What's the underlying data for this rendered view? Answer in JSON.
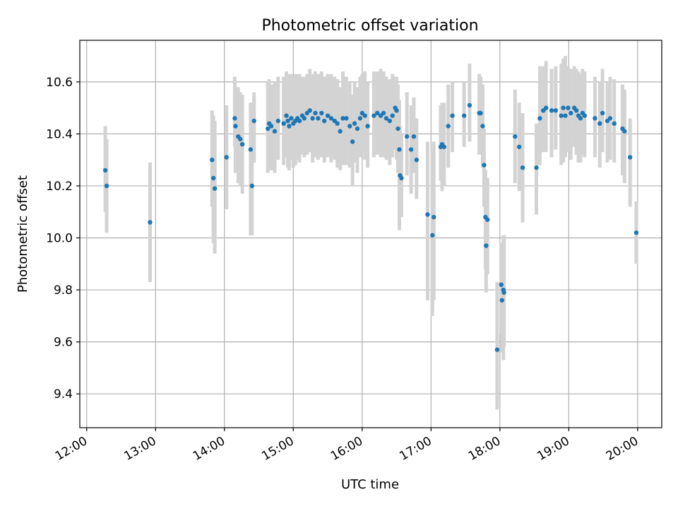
{
  "chart_data": {
    "type": "scatter",
    "title": "Photometric offset variation",
    "xlabel": "UTC time",
    "ylabel": "Photometric offset",
    "x_unit": "hour",
    "xlim": [
      11.9,
      20.35
    ],
    "ylim": [
      9.27,
      10.76
    ],
    "grid": true,
    "xticks": [
      12,
      13,
      14,
      15,
      16,
      17,
      18,
      19,
      20
    ],
    "xtick_labels": [
      "12:00",
      "13:00",
      "14:00",
      "15:00",
      "16:00",
      "17:00",
      "18:00",
      "19:00",
      "20:00"
    ],
    "yticks": [
      9.4,
      9.6,
      9.8,
      10.0,
      10.2,
      10.4,
      10.6
    ],
    "ytick_labels": [
      "9.4",
      "9.6",
      "9.8",
      "10.0",
      "10.2",
      "10.4",
      "10.6"
    ],
    "colors": {
      "point": "#1f77b4",
      "errorbar": "#d3d3d3",
      "grid": "#b0b0b0"
    },
    "series": [
      {
        "points": [
          [
            12.27,
            10.26,
            10.1,
            10.43
          ],
          [
            12.29,
            10.2,
            10.02,
            10.38
          ],
          [
            12.92,
            10.06,
            9.83,
            10.29
          ],
          [
            13.82,
            10.3,
            10.12,
            10.49
          ],
          [
            13.84,
            10.23,
            9.98,
            10.47
          ],
          [
            13.86,
            10.19,
            9.94,
            10.45
          ],
          [
            14.03,
            10.31,
            10.11,
            10.51
          ],
          [
            14.15,
            10.46,
            10.35,
            10.62
          ],
          [
            14.16,
            10.43,
            10.25,
            10.58
          ],
          [
            14.2,
            10.39,
            10.21,
            10.58
          ],
          [
            14.23,
            10.38,
            10.2,
            10.56
          ],
          [
            14.26,
            10.36,
            10.17,
            10.55
          ],
          [
            14.38,
            10.34,
            10.01,
            10.52
          ],
          [
            14.4,
            10.2,
            10.01,
            10.43
          ],
          [
            14.43,
            10.45,
            10.29,
            10.56
          ],
          [
            14.63,
            10.42,
            10.25,
            10.6
          ],
          [
            14.65,
            10.44,
            10.26,
            10.61
          ],
          [
            14.68,
            10.43,
            10.26,
            10.59
          ],
          [
            14.73,
            10.41,
            10.25,
            10.6
          ],
          [
            14.78,
            10.45,
            10.3,
            10.62
          ],
          [
            14.86,
            10.44,
            10.28,
            10.62
          ],
          [
            14.9,
            10.47,
            10.31,
            10.64
          ],
          [
            14.92,
            10.45,
            10.27,
            10.63
          ],
          [
            14.94,
            10.43,
            10.26,
            10.63
          ],
          [
            14.97,
            10.46,
            10.3,
            10.63
          ],
          [
            15.0,
            10.44,
            10.27,
            10.62
          ],
          [
            15.03,
            10.45,
            10.28,
            10.63
          ],
          [
            15.06,
            10.46,
            10.3,
            10.63
          ],
          [
            15.09,
            10.45,
            10.29,
            10.63
          ],
          [
            15.13,
            10.47,
            10.32,
            10.62
          ],
          [
            15.16,
            10.46,
            10.31,
            10.62
          ],
          [
            15.2,
            10.48,
            10.32,
            10.63
          ],
          [
            15.24,
            10.49,
            10.33,
            10.65
          ],
          [
            15.28,
            10.46,
            10.29,
            10.63
          ],
          [
            15.32,
            10.48,
            10.31,
            10.64
          ],
          [
            15.36,
            10.46,
            10.3,
            10.63
          ],
          [
            15.41,
            10.48,
            10.31,
            10.64
          ],
          [
            15.45,
            10.45,
            10.29,
            10.62
          ],
          [
            15.5,
            10.47,
            10.31,
            10.63
          ],
          [
            15.55,
            10.46,
            10.29,
            10.63
          ],
          [
            15.6,
            10.45,
            10.3,
            10.62
          ],
          [
            15.64,
            10.44,
            10.27,
            10.61
          ],
          [
            15.68,
            10.41,
            10.26,
            10.58
          ],
          [
            15.72,
            10.46,
            10.28,
            10.64
          ],
          [
            15.77,
            10.46,
            10.28,
            10.62
          ],
          [
            15.82,
            10.43,
            10.27,
            10.6
          ],
          [
            15.86,
            10.37,
            10.2,
            10.55
          ],
          [
            15.89,
            10.44,
            10.29,
            10.6
          ],
          [
            15.93,
            10.42,
            10.25,
            10.58
          ],
          [
            15.97,
            10.46,
            10.31,
            10.62
          ],
          [
            16.0,
            10.48,
            10.33,
            10.63
          ],
          [
            16.04,
            10.47,
            10.3,
            10.64
          ],
          [
            16.08,
            10.43,
            10.27,
            10.6
          ],
          [
            16.17,
            10.47,
            10.31,
            10.64
          ],
          [
            16.22,
            10.48,
            10.32,
            10.64
          ],
          [
            16.27,
            10.47,
            10.31,
            10.65
          ],
          [
            16.31,
            10.48,
            10.31,
            10.64
          ],
          [
            16.35,
            10.46,
            10.3,
            10.62
          ],
          [
            16.4,
            10.45,
            10.28,
            10.61
          ],
          [
            16.44,
            10.47,
            10.31,
            10.63
          ],
          [
            16.48,
            10.5,
            10.34,
            10.62
          ],
          [
            16.5,
            10.49,
            10.3,
            10.62
          ],
          [
            16.52,
            10.42,
            10.25,
            10.59
          ],
          [
            16.54,
            10.34,
            10.03,
            10.53
          ],
          [
            16.55,
            10.24,
            10.1,
            10.43
          ],
          [
            16.57,
            10.23,
            10.08,
            10.4
          ],
          [
            16.65,
            10.39,
            10.24,
            10.56
          ],
          [
            16.71,
            10.34,
            10.17,
            10.51
          ],
          [
            16.75,
            10.39,
            10.25,
            10.54
          ],
          [
            16.79,
            10.3,
            10.15,
            10.46
          ],
          [
            16.95,
            10.09,
            9.76,
            10.37
          ],
          [
            17.02,
            10.01,
            9.7,
            10.34
          ],
          [
            17.04,
            10.08,
            9.76,
            10.37
          ],
          [
            17.14,
            10.35,
            10.22,
            10.51
          ],
          [
            17.16,
            10.36,
            10.18,
            10.52
          ],
          [
            17.19,
            10.35,
            10.2,
            10.52
          ],
          [
            17.25,
            10.43,
            10.27,
            10.59
          ],
          [
            17.31,
            10.47,
            10.33,
            10.6
          ],
          [
            17.48,
            10.47,
            10.35,
            10.6
          ],
          [
            17.56,
            10.51,
            10.37,
            10.67
          ],
          [
            17.7,
            10.48,
            10.32,
            10.63
          ],
          [
            17.72,
            10.48,
            10.33,
            10.62
          ],
          [
            17.75,
            10.43,
            10.27,
            10.59
          ],
          [
            17.77,
            10.28,
            10.12,
            10.42
          ],
          [
            17.79,
            10.08,
            9.88,
            10.26
          ],
          [
            17.8,
            9.97,
            9.79,
            10.15
          ],
          [
            17.82,
            10.07,
            9.86,
            10.23
          ],
          [
            17.96,
            9.57,
            9.34,
            9.83
          ],
          [
            18.02,
            9.82,
            9.63,
            9.98
          ],
          [
            18.03,
            9.76,
            9.56,
            9.97
          ],
          [
            18.05,
            9.8,
            9.53,
            10.01
          ],
          [
            18.06,
            9.79,
            9.58,
            10.01
          ],
          [
            18.22,
            10.39,
            10.21,
            10.57
          ],
          [
            18.28,
            10.35,
            10.18,
            10.52
          ],
          [
            18.33,
            10.27,
            10.06,
            10.48
          ],
          [
            18.53,
            10.27,
            10.09,
            10.44
          ],
          [
            18.58,
            10.46,
            10.28,
            10.66
          ],
          [
            18.63,
            10.49,
            10.33,
            10.66
          ],
          [
            18.67,
            10.5,
            10.33,
            10.68
          ],
          [
            18.75,
            10.49,
            10.31,
            10.65
          ],
          [
            18.81,
            10.49,
            10.34,
            10.66
          ],
          [
            18.89,
            10.47,
            10.28,
            10.67
          ],
          [
            18.92,
            10.5,
            10.29,
            10.69
          ],
          [
            18.95,
            10.47,
            10.31,
            10.7
          ],
          [
            18.99,
            10.5,
            10.33,
            10.66
          ],
          [
            19.03,
            10.48,
            10.3,
            10.65
          ],
          [
            19.08,
            10.5,
            10.35,
            10.66
          ],
          [
            19.11,
            10.49,
            10.32,
            10.65
          ],
          [
            19.14,
            10.47,
            10.29,
            10.64
          ],
          [
            19.17,
            10.46,
            10.29,
            10.63
          ],
          [
            19.2,
            10.48,
            10.32,
            10.65
          ],
          [
            19.23,
            10.47,
            10.31,
            10.64
          ],
          [
            19.38,
            10.46,
            10.31,
            10.62
          ],
          [
            19.45,
            10.44,
            10.27,
            10.6
          ],
          [
            19.49,
            10.48,
            10.33,
            10.65
          ],
          [
            19.56,
            10.45,
            10.29,
            10.6
          ],
          [
            19.6,
            10.46,
            10.3,
            10.62
          ],
          [
            19.66,
            10.44,
            10.29,
            10.61
          ],
          [
            19.78,
            10.42,
            10.24,
            10.59
          ],
          [
            19.81,
            10.41,
            10.21,
            10.57
          ],
          [
            19.89,
            10.31,
            10.12,
            10.46
          ],
          [
            19.98,
            10.02,
            9.9,
            10.14
          ]
        ]
      }
    ]
  }
}
